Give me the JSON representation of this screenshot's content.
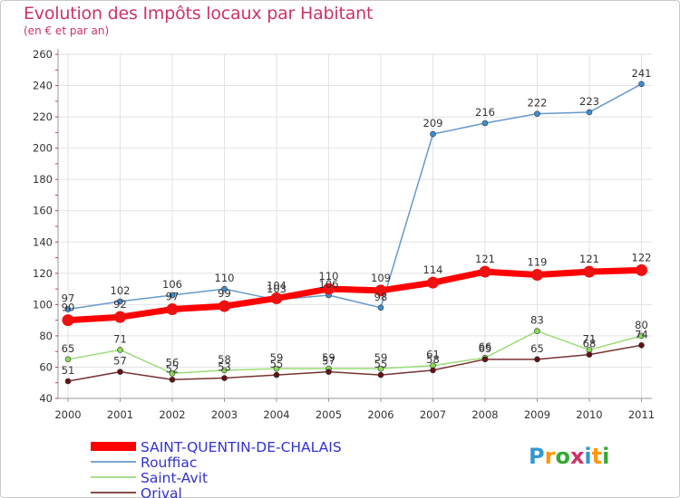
{
  "header": {
    "title": "Evolution des Impôts locaux par Habitant",
    "subtitle": "(en € et par an)"
  },
  "logo": {
    "letters": [
      "P",
      "r",
      "o",
      "x",
      "i",
      "t",
      "i"
    ]
  },
  "colors": {
    "title": "#cc3366",
    "axis": "#999999",
    "grid": "#e2e2e2",
    "axis_ticks_red": "#cc3366",
    "legend_text": "#3333cc",
    "logo": [
      "#3399cc",
      "#ff9900",
      "#33aa33",
      "#cc3366",
      "#3399cc",
      "#ff9900",
      "#33aa33"
    ]
  },
  "chart_data": {
    "type": "line",
    "title": "Evolution des Impôts locaux par Habitant",
    "subtitle": "(en € et par an)",
    "xlabel": "",
    "ylabel": "",
    "categories": [
      "2000",
      "2001",
      "2002",
      "2003",
      "2004",
      "2005",
      "2006",
      "2007",
      "2008",
      "2009",
      "2010",
      "2011"
    ],
    "ylim": [
      40,
      260
    ],
    "yticks": [
      40,
      60,
      80,
      100,
      120,
      140,
      160,
      180,
      200,
      220,
      240,
      260
    ],
    "grid": true,
    "legend_position": "bottom-left",
    "series": [
      {
        "name": "SAINT-QUENTIN-DE-CHALAIS",
        "color": "#ff0000",
        "marker": "#ee1111",
        "style": "thick",
        "values": [
          90,
          92,
          97,
          99,
          104,
          110,
          109,
          114,
          121,
          119,
          121,
          122
        ],
        "labels": [
          "90",
          "92",
          "97",
          "99",
          "104",
          "110",
          "109",
          "114",
          "121",
          "119",
          "121",
          "122"
        ]
      },
      {
        "name": "Rouffiac",
        "color": "#6699cc",
        "marker": "#3a8fd4",
        "style": "thin",
        "values": [
          97,
          102,
          106,
          110,
          103,
          106,
          98,
          209,
          216,
          222,
          223,
          241
        ],
        "labels": [
          "97",
          "102",
          "106",
          "110",
          "103",
          "106",
          "98",
          "209",
          "216",
          "222",
          "223",
          "241"
        ]
      },
      {
        "name": "Saint-Avit",
        "color": "#99dd77",
        "marker": "#88dd55",
        "style": "thin",
        "values": [
          65,
          71,
          56,
          58,
          59,
          59,
          59,
          61,
          66,
          83,
          71,
          80
        ],
        "labels": [
          "65",
          "71",
          "56",
          "58",
          "59",
          "59",
          "59",
          "61",
          "66",
          "83",
          "71",
          "80"
        ]
      },
      {
        "name": "Orival",
        "color": "#773333",
        "marker": "#661111",
        "style": "thin",
        "values": [
          51,
          57,
          52,
          53,
          55,
          57,
          55,
          58,
          65,
          65,
          68,
          74
        ],
        "labels": [
          "51",
          "57",
          "52",
          "53",
          "55",
          "57",
          "55",
          "58",
          "65",
          "65",
          "68",
          "74"
        ]
      }
    ]
  }
}
